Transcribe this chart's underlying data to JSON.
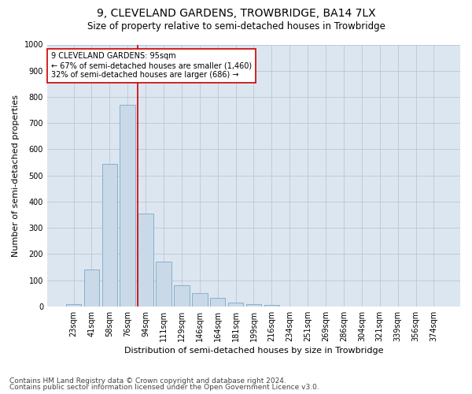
{
  "title": "9, CLEVELAND GARDENS, TROWBRIDGE, BA14 7LX",
  "subtitle": "Size of property relative to semi-detached houses in Trowbridge",
  "xlabel": "Distribution of semi-detached houses by size in Trowbridge",
  "ylabel": "Number of semi-detached properties",
  "bar_color": "#c9d9e8",
  "bar_edge_color": "#7aaac8",
  "categories": [
    "23sqm",
    "41sqm",
    "58sqm",
    "76sqm",
    "94sqm",
    "111sqm",
    "129sqm",
    "146sqm",
    "164sqm",
    "181sqm",
    "199sqm",
    "216sqm",
    "234sqm",
    "251sqm",
    "269sqm",
    "286sqm",
    "304sqm",
    "321sqm",
    "339sqm",
    "356sqm",
    "374sqm"
  ],
  "values": [
    8,
    140,
    545,
    770,
    355,
    170,
    82,
    50,
    33,
    16,
    8,
    4,
    0,
    0,
    0,
    0,
    0,
    0,
    0,
    0,
    0
  ],
  "ylim": [
    0,
    1000
  ],
  "yticks": [
    0,
    100,
    200,
    300,
    400,
    500,
    600,
    700,
    800,
    900,
    1000
  ],
  "property_line_index": 4,
  "property_line_color": "#cc0000",
  "annotation_box_text": "9 CLEVELAND GARDENS: 95sqm\n← 67% of semi-detached houses are smaller (1,460)\n32% of semi-detached houses are larger (686) →",
  "annotation_box_color": "#cc0000",
  "annotation_box_fill": "#ffffff",
  "footer_line1": "Contains HM Land Registry data © Crown copyright and database right 2024.",
  "footer_line2": "Contains public sector information licensed under the Open Government Licence v3.0.",
  "background_color": "#ffffff",
  "plot_bg_color": "#dce6f0",
  "grid_color": "#b8c8d8",
  "title_fontsize": 10,
  "subtitle_fontsize": 8.5,
  "xlabel_fontsize": 8,
  "ylabel_fontsize": 8,
  "footer_fontsize": 6.5,
  "tick_fontsize": 7,
  "annotation_fontsize": 7
}
